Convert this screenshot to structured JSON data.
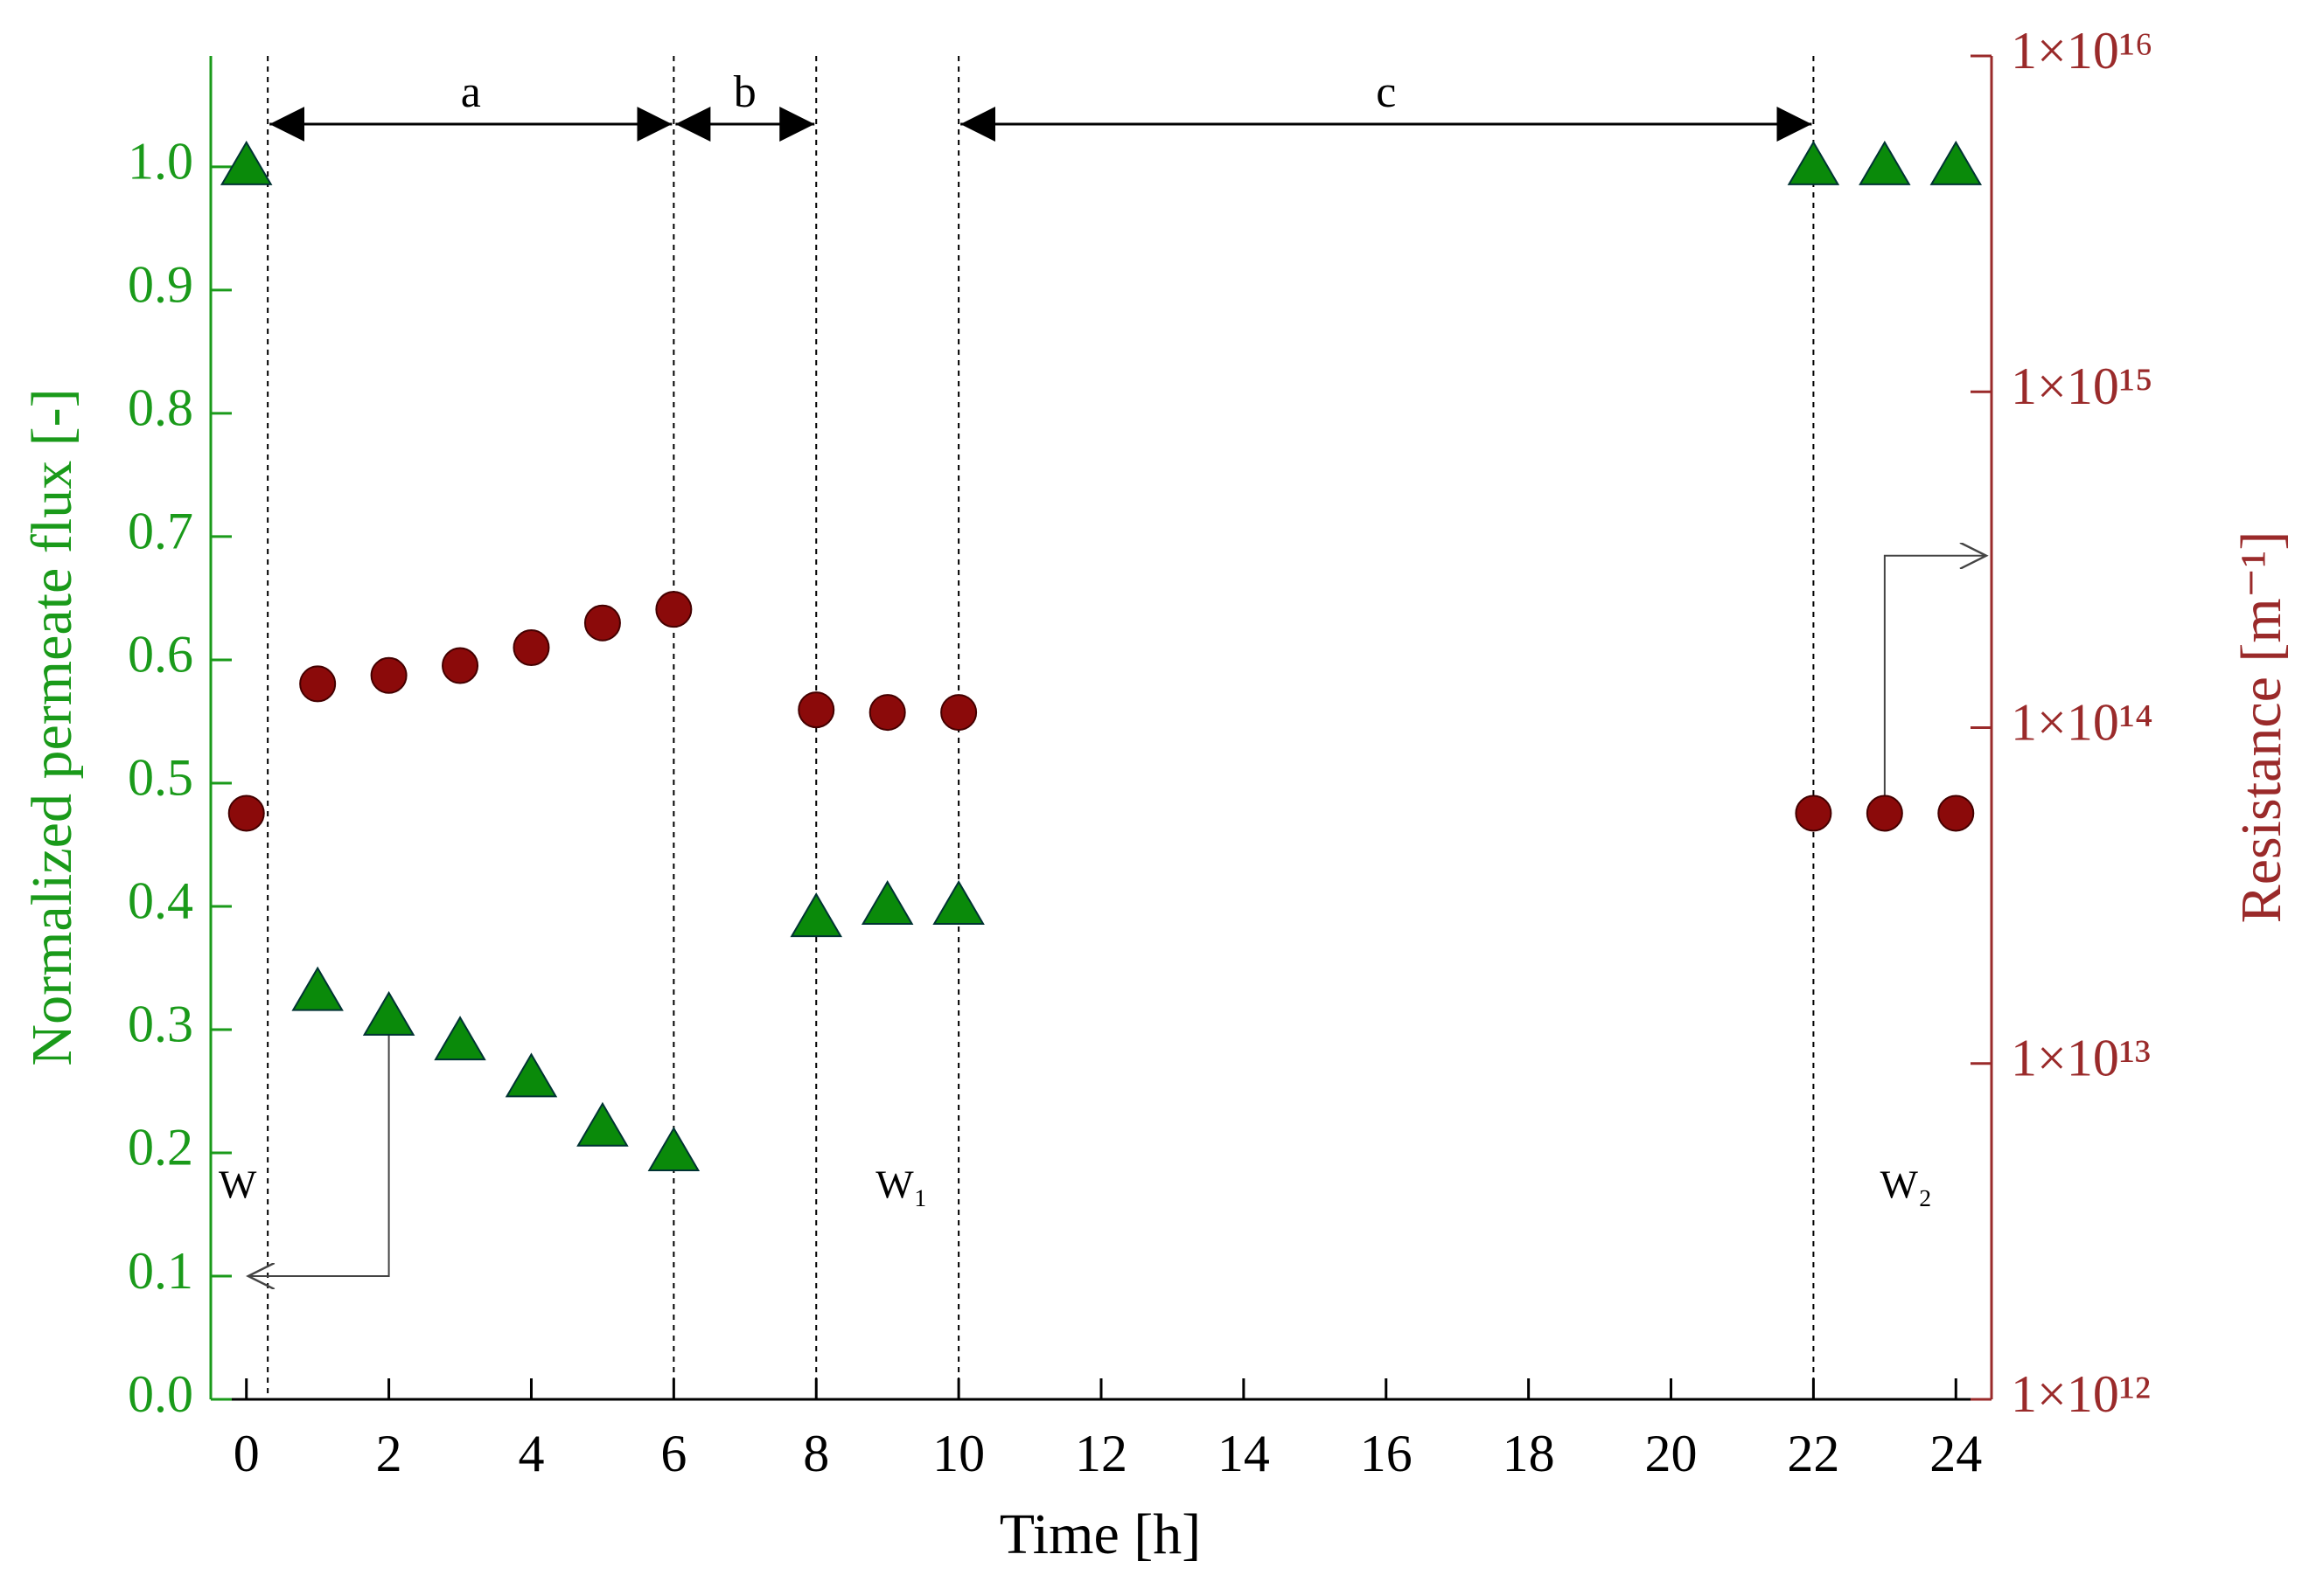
{
  "chart_data": {
    "type": "scatter",
    "x_label": "Time [h]",
    "y_label": "Normalized permeate flux [-]",
    "y2_label": "Resistance [m⁻¹]",
    "x": [
      0,
      1,
      2,
      3,
      4,
      5,
      6,
      8,
      9,
      10,
      22,
      23,
      24
    ],
    "series": [
      {
        "name": "Normalized permeate flux",
        "color": "#0a8a0a",
        "marker": "triangle",
        "values": [
          1.0,
          0.33,
          0.31,
          0.29,
          0.26,
          0.22,
          0.2,
          0.39,
          0.4,
          0.4,
          1.0,
          1.0,
          1.0
        ]
      },
      {
        "name": "Resistance",
        "color": "#8b0a0a",
        "marker": "circle",
        "axis": "y2",
        "values": [
          55600000000000.0,
          135000000000000.0,
          143000000000000.0,
          153000000000000.0,
          173000000000000.0,
          205000000000000.0,
          225000000000000.0,
          113000000000000.0,
          111000000000000.0,
          111000000000000.0,
          55600000000000.0,
          55600000000000.0,
          55600000000000.0
        ]
      }
    ],
    "xlim": [
      -0.5,
      24.5
    ],
    "xticks": [
      0,
      2,
      4,
      6,
      8,
      10,
      12,
      14,
      16,
      18,
      20,
      22,
      24
    ],
    "ylim": [
      0,
      1.09
    ],
    "yticks": [
      {
        "value": 0,
        "label": "0.0"
      },
      0.1,
      0.2,
      0.3,
      0.4,
      0.5,
      0.6,
      0.7,
      0.8,
      0.9,
      {
        "value": 1,
        "label": "1.0"
      }
    ],
    "y2lim": [
      1000000000000.0,
      1e+16
    ],
    "y2log": true,
    "y2ticks": [
      {
        "value": 1000000000000.0,
        "label": "1×10¹²"
      },
      {
        "value": 10000000000000.0,
        "label": "1×10¹³"
      },
      {
        "value": 100000000000000.0,
        "label": "1×10¹⁴"
      },
      {
        "value": 1000000000000000.0,
        "label": "1×10¹⁵"
      },
      {
        "value": 1e+16,
        "label": "1×10¹⁶"
      }
    ],
    "grid": false,
    "annotations": [
      "a",
      "b",
      "c",
      "W",
      "W₁",
      "W₂"
    ]
  }
}
